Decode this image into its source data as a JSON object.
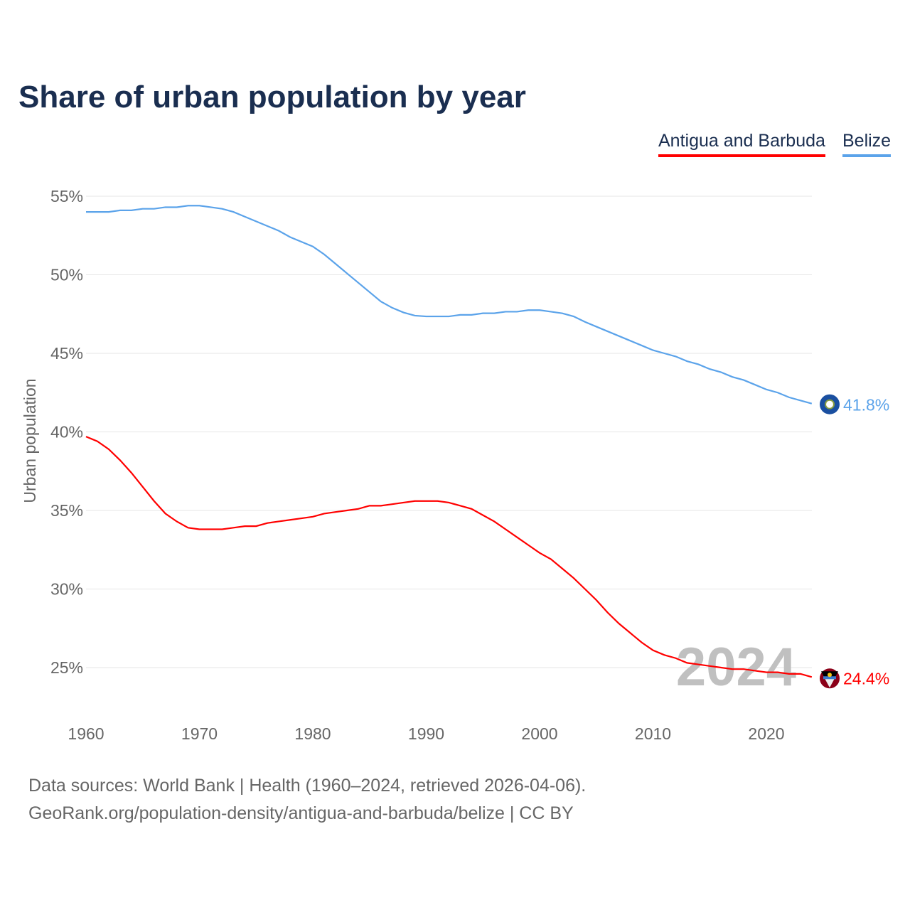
{
  "title": "Share of urban population by year",
  "footer": {
    "line1": "Data sources: World Bank | Health (1960–2024, retrieved 2026-04-06).",
    "line2": "GeoRank.org/population-density/antigua-and-barbuda/belize | CC BY"
  },
  "chart_data": {
    "type": "line",
    "title": "Share of urban population by year",
    "xlabel": "",
    "ylabel": "Urban population",
    "xlim": [
      1960,
      2024
    ],
    "ylim": [
      22.5,
      56
    ],
    "yticks": [
      25,
      30,
      35,
      40,
      45,
      50,
      55
    ],
    "ytick_labels": [
      "25%",
      "30%",
      "35%",
      "40%",
      "45%",
      "50%",
      "55%"
    ],
    "xticks": [
      1960,
      1970,
      1980,
      1990,
      2000,
      2010,
      2020
    ],
    "xtick_labels": [
      "1960",
      "1970",
      "1980",
      "1990",
      "2000",
      "2010",
      "2020"
    ],
    "watermark_year": "2024",
    "grid": true,
    "legend_placement": "top-right",
    "x_start": 1960,
    "series": [
      {
        "name": "Antigua and Barbuda",
        "color": "#ff0000",
        "end_label": "24.4%",
        "flag": "antigua-flag-icon",
        "values": [
          39.7,
          39.4,
          38.9,
          38.2,
          37.4,
          36.5,
          35.6,
          34.8,
          34.3,
          33.9,
          33.8,
          33.8,
          33.8,
          33.9,
          34.0,
          34.0,
          34.2,
          34.3,
          34.4,
          34.5,
          34.6,
          34.8,
          34.9,
          35.0,
          35.1,
          35.3,
          35.3,
          35.4,
          35.5,
          35.6,
          35.6,
          35.6,
          35.5,
          35.3,
          35.1,
          34.7,
          34.3,
          33.8,
          33.3,
          32.8,
          32.3,
          31.9,
          31.3,
          30.7,
          30.0,
          29.3,
          28.5,
          27.8,
          27.2,
          26.6,
          26.1,
          25.8,
          25.6,
          25.3,
          25.2,
          25.1,
          25.0,
          24.9,
          24.9,
          24.8,
          24.7,
          24.7,
          24.6,
          24.6,
          24.4
        ]
      },
      {
        "name": "Belize",
        "color": "#5ba3ea",
        "end_label": "41.8%",
        "flag": "belize-flag-icon",
        "values": [
          54.0,
          54.0,
          54.0,
          54.1,
          54.1,
          54.2,
          54.2,
          54.3,
          54.3,
          54.4,
          54.4,
          54.3,
          54.2,
          54.0,
          53.7,
          53.4,
          53.1,
          52.8,
          52.4,
          52.1,
          51.8,
          51.3,
          50.7,
          50.1,
          49.5,
          48.9,
          48.3,
          47.9,
          47.6,
          47.4,
          47.35,
          47.35,
          47.35,
          47.45,
          47.45,
          47.55,
          47.55,
          47.65,
          47.65,
          47.75,
          47.75,
          47.65,
          47.55,
          47.35,
          47.0,
          46.7,
          46.4,
          46.1,
          45.8,
          45.5,
          45.2,
          45.0,
          44.8,
          44.5,
          44.3,
          44.0,
          43.8,
          43.5,
          43.3,
          43.0,
          42.7,
          42.5,
          42.2,
          42.0,
          41.8
        ]
      }
    ]
  }
}
